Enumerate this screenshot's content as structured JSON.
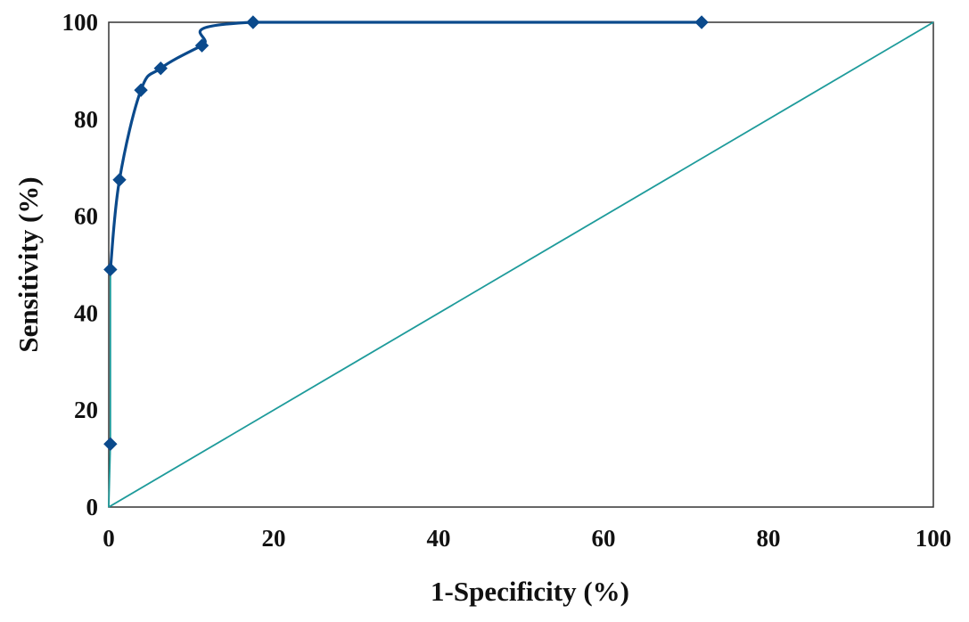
{
  "chart_data": {
    "type": "line",
    "title": "",
    "xlabel": "1-Specificity (%)",
    "ylabel": "Sensitivity (%)",
    "xlim": [
      0,
      100
    ],
    "ylim": [
      0,
      100
    ],
    "xticks": [
      0,
      20,
      40,
      60,
      80,
      100
    ],
    "yticks": [
      0,
      20,
      40,
      60,
      80,
      100
    ],
    "grid": false,
    "legend": "none",
    "series": [
      {
        "kind": "roc-curve",
        "color": "#0b4a8c",
        "marker": "diamond",
        "smooth": true,
        "points": [
          {
            "x": 0,
            "y": 0
          },
          {
            "x": 0.2,
            "y": 13
          },
          {
            "x": 0.2,
            "y": 49
          },
          {
            "x": 1.3,
            "y": 67.5
          },
          {
            "x": 3.9,
            "y": 86
          },
          {
            "x": 6.3,
            "y": 90.5
          },
          {
            "x": 11.3,
            "y": 95.2
          },
          {
            "x": 17.5,
            "y": 100
          },
          {
            "x": 71.9,
            "y": 100
          }
        ]
      },
      {
        "kind": "reference-diagonal",
        "color": "#1e9b9b",
        "points": [
          {
            "x": 0,
            "y": 0
          },
          {
            "x": 100,
            "y": 100
          }
        ]
      }
    ]
  }
}
